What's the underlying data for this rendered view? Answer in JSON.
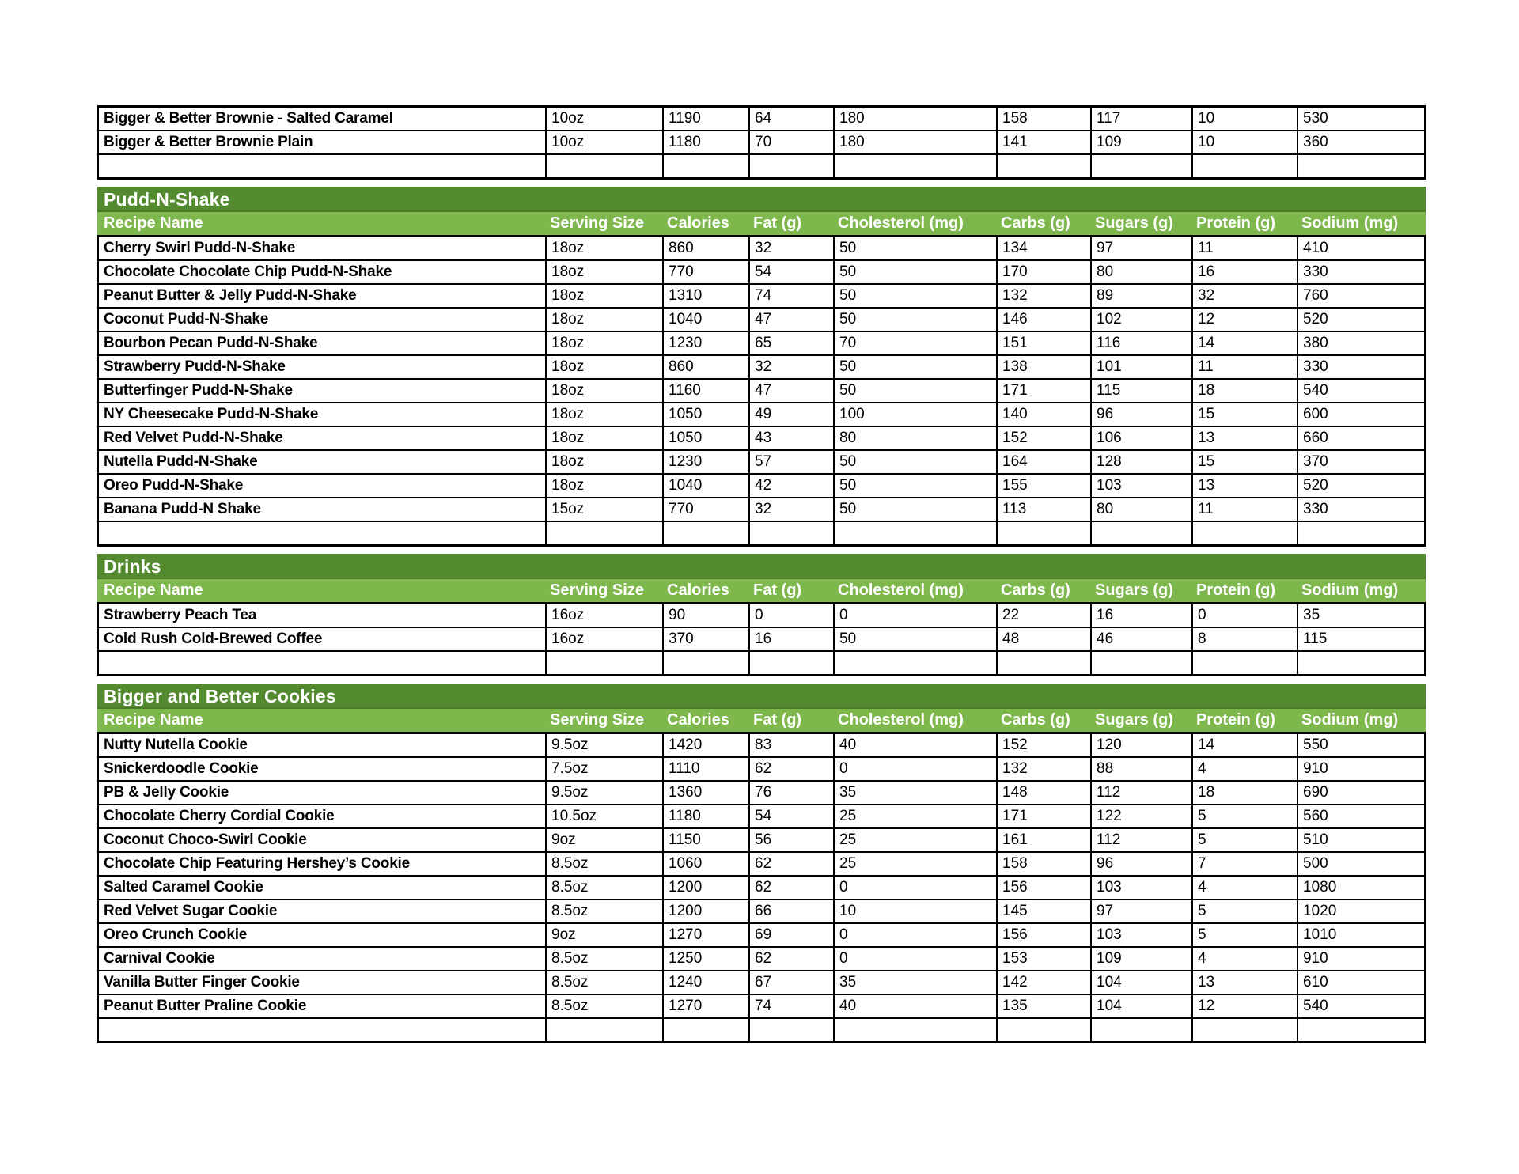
{
  "table": {
    "colors": {
      "section_band": "#538A2F",
      "header_band": "#7EB84D",
      "header_text": "#FFFFFF",
      "row_text": "#000000",
      "border": "#000000"
    },
    "columns": [
      "Recipe Name",
      "Serving Size",
      "Calories",
      "Fat (g)",
      "Cholesterol (mg)",
      "Carbs (g)",
      "Sugars (g)",
      "Protein (g)",
      "Sodium (mg)"
    ],
    "sections": [
      {
        "title": null,
        "rows": [
          [
            "Bigger & Better Brownie - Salted Caramel",
            "10oz",
            "1190",
            "64",
            "180",
            "158",
            "117",
            "10",
            "530"
          ],
          [
            "Bigger & Better Brownie Plain",
            "10oz",
            "1180",
            "70",
            "180",
            "141",
            "109",
            "10",
            "360"
          ]
        ]
      },
      {
        "title": "Pudd-N-Shake",
        "rows": [
          [
            "Cherry Swirl Pudd-N-Shake",
            "18oz",
            "860",
            "32",
            "50",
            "134",
            "97",
            "11",
            "410"
          ],
          [
            "Chocolate Chocolate Chip Pudd-N-Shake",
            "18oz",
            "770",
            "54",
            "50",
            "170",
            "80",
            "16",
            "330"
          ],
          [
            "Peanut Butter & Jelly Pudd-N-Shake",
            "18oz",
            "1310",
            "74",
            "50",
            "132",
            "89",
            "32",
            "760"
          ],
          [
            "Coconut Pudd-N-Shake",
            "18oz",
            "1040",
            "47",
            "50",
            "146",
            "102",
            "12",
            "520"
          ],
          [
            "Bourbon Pecan Pudd-N-Shake",
            "18oz",
            "1230",
            "65",
            "70",
            "151",
            "116",
            "14",
            "380"
          ],
          [
            "Strawberry Pudd-N-Shake",
            "18oz",
            "860",
            "32",
            "50",
            "138",
            "101",
            "11",
            "330"
          ],
          [
            "Butterfinger Pudd-N-Shake",
            "18oz",
            "1160",
            "47",
            "50",
            "171",
            "115",
            "18",
            "540"
          ],
          [
            "NY Cheesecake Pudd-N-Shake",
            "18oz",
            "1050",
            "49",
            "100",
            "140",
            "96",
            "15",
            "600"
          ],
          [
            "Red Velvet Pudd-N-Shake",
            "18oz",
            "1050",
            "43",
            "80",
            "152",
            "106",
            "13",
            "660"
          ],
          [
            "Nutella Pudd-N-Shake",
            "18oz",
            "1230",
            "57",
            "50",
            "164",
            "128",
            "15",
            "370"
          ],
          [
            "Oreo Pudd-N-Shake",
            "18oz",
            "1040",
            "42",
            "50",
            "155",
            "103",
            "13",
            "520"
          ],
          [
            "Banana Pudd-N Shake",
            "15oz",
            "770",
            "32",
            "50",
            "113",
            "80",
            "11",
            "330"
          ]
        ]
      },
      {
        "title": "Drinks",
        "rows": [
          [
            "Strawberry Peach Tea",
            "16oz",
            "90",
            "0",
            "0",
            "22",
            "16",
            "0",
            "35"
          ],
          [
            "Cold Rush Cold-Brewed Coffee",
            "16oz",
            "370",
            "16",
            "50",
            "48",
            "46",
            "8",
            "115"
          ]
        ]
      },
      {
        "title": "Bigger and Better Cookies",
        "rows": [
          [
            "Nutty Nutella Cookie",
            "9.5oz",
            "1420",
            "83",
            "40",
            "152",
            "120",
            "14",
            "550"
          ],
          [
            "Snickerdoodle Cookie",
            "7.5oz",
            "1110",
            "62",
            "0",
            "132",
            "88",
            "4",
            "910"
          ],
          [
            "PB & Jelly Cookie",
            "9.5oz",
            "1360",
            "76",
            "35",
            "148",
            "112",
            "18",
            "690"
          ],
          [
            "Chocolate Cherry Cordial Cookie",
            "10.5oz",
            "1180",
            "54",
            "25",
            "171",
            "122",
            "5",
            "560"
          ],
          [
            "Coconut Choco-Swirl Cookie",
            "9oz",
            "1150",
            "56",
            "25",
            "161",
            "112",
            "5",
            "510"
          ],
          [
            "Chocolate Chip Featuring Hershey’s Cookie",
            "8.5oz",
            "1060",
            "62",
            "25",
            "158",
            "96",
            "7",
            "500"
          ],
          [
            "Salted Caramel Cookie",
            "8.5oz",
            "1200",
            "62",
            "0",
            "156",
            "103",
            "4",
            "1080"
          ],
          [
            "Red Velvet Sugar Cookie",
            "8.5oz",
            "1200",
            "66",
            "10",
            "145",
            "97",
            "5",
            "1020"
          ],
          [
            "Oreo Crunch Cookie",
            "9oz",
            "1270",
            "69",
            "0",
            "156",
            "103",
            "5",
            "1010"
          ],
          [
            "Carnival Cookie",
            "8.5oz",
            "1250",
            "62",
            "0",
            "153",
            "109",
            "4",
            "910"
          ],
          [
            "Vanilla Butter Finger Cookie",
            "8.5oz",
            "1240",
            "67",
            "35",
            "142",
            "104",
            "13",
            "610"
          ],
          [
            "Peanut Butter Praline Cookie",
            "8.5oz",
            "1270",
            "74",
            "40",
            "135",
            "104",
            "12",
            "540"
          ]
        ]
      }
    ]
  }
}
